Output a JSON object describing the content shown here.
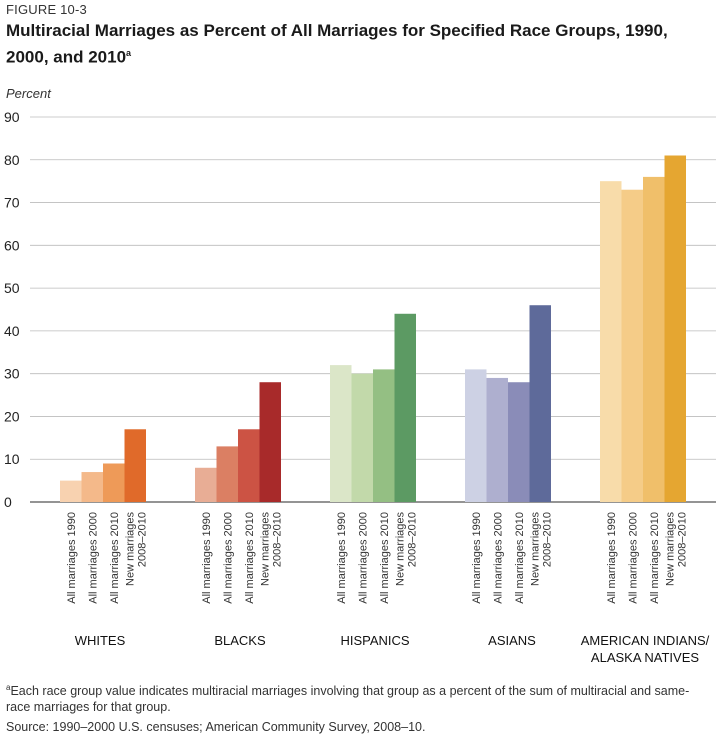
{
  "figure_label": "FIGURE 10-3",
  "title": "Multiracial Marriages as Percent of All Marriages for Specified Race Groups, 1990, 2000, and 2010",
  "title_superscript": "a",
  "footnote_marker": "a",
  "footnote": "Each race group value indicates multiracial marriages involving that group as a percent of the sum of multiracial and same-race marriages for that group.",
  "source": "Source: 1990–2000 U.S. censuses; American Community Survey, 2008–10.",
  "chart_data": {
    "type": "bar",
    "ylabel": "Percent",
    "ylim": [
      0,
      90
    ],
    "yticks": [
      0,
      10,
      20,
      30,
      40,
      50,
      60,
      70,
      80,
      90
    ],
    "grid": true,
    "bar_labels": [
      "All marriages 1990",
      "All marriages 2000",
      "All marriages 2010",
      "New marriages 2008–2010"
    ],
    "groups": [
      {
        "name": "WHITES",
        "values": [
          5,
          7,
          9,
          17
        ],
        "colors": [
          "#f8d2b0",
          "#f4b98a",
          "#ee9a58",
          "#e06a2a"
        ]
      },
      {
        "name": "BLACKS",
        "values": [
          8,
          13,
          17,
          28
        ],
        "colors": [
          "#e8ad95",
          "#db7f63",
          "#cc5344",
          "#a82a2a"
        ]
      },
      {
        "name": "HISPANICS",
        "values": [
          32,
          30,
          31,
          44
        ],
        "colors": [
          "#dbe6c8",
          "#c2d9aa",
          "#94bf83",
          "#5c9a63"
        ]
      },
      {
        "name": "ASIANS",
        "values": [
          31,
          29,
          28,
          46
        ],
        "colors": [
          "#cdd1e4",
          "#aeafcf",
          "#8a8cb8",
          "#5e6a9a"
        ]
      },
      {
        "name": "AMERICAN INDIANS/ ALASKA NATIVES",
        "values": [
          75,
          73,
          76,
          81
        ],
        "colors": [
          "#f8dcaa",
          "#f5cc88",
          "#f0bf6a",
          "#e5a631"
        ]
      }
    ]
  }
}
